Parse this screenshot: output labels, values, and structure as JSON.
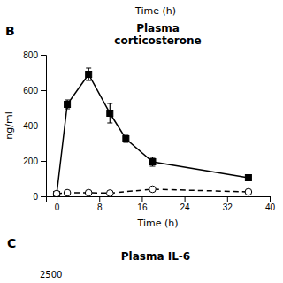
{
  "chart_data": {
    "type": "line",
    "title": [
      "Plasma",
      "corticosterone"
    ],
    "x_label": "Time (h)",
    "y_label": "ng/ml",
    "annotations": [
      "B",
      "Time (h)",
      "C",
      "Plasma IL-6",
      "2500"
    ],
    "xlim": [
      -2,
      40
    ],
    "ylim": [
      0,
      800
    ],
    "xticks": [
      0,
      8,
      16,
      24,
      32,
      40
    ],
    "yticks": [
      0,
      200,
      400,
      600,
      800
    ],
    "grid": false,
    "series": [
      {
        "color": "black",
        "marker": "square",
        "line_style": "solid",
        "x": [
          0,
          2,
          6,
          10,
          13,
          18,
          36
        ],
        "values": [
          10,
          520,
          690,
          470,
          325,
          195,
          105
        ],
        "errors": [
          5,
          25,
          35,
          55,
          20,
          25,
          15
        ]
      },
      {
        "color": "black",
        "marker": "circle-open",
        "line_style": "dashed",
        "x": [
          0,
          2,
          6,
          10,
          18,
          36
        ],
        "values": [
          15,
          20,
          20,
          18,
          40,
          25
        ],
        "errors": [
          3,
          3,
          3,
          3,
          5,
          3
        ]
      }
    ]
  }
}
